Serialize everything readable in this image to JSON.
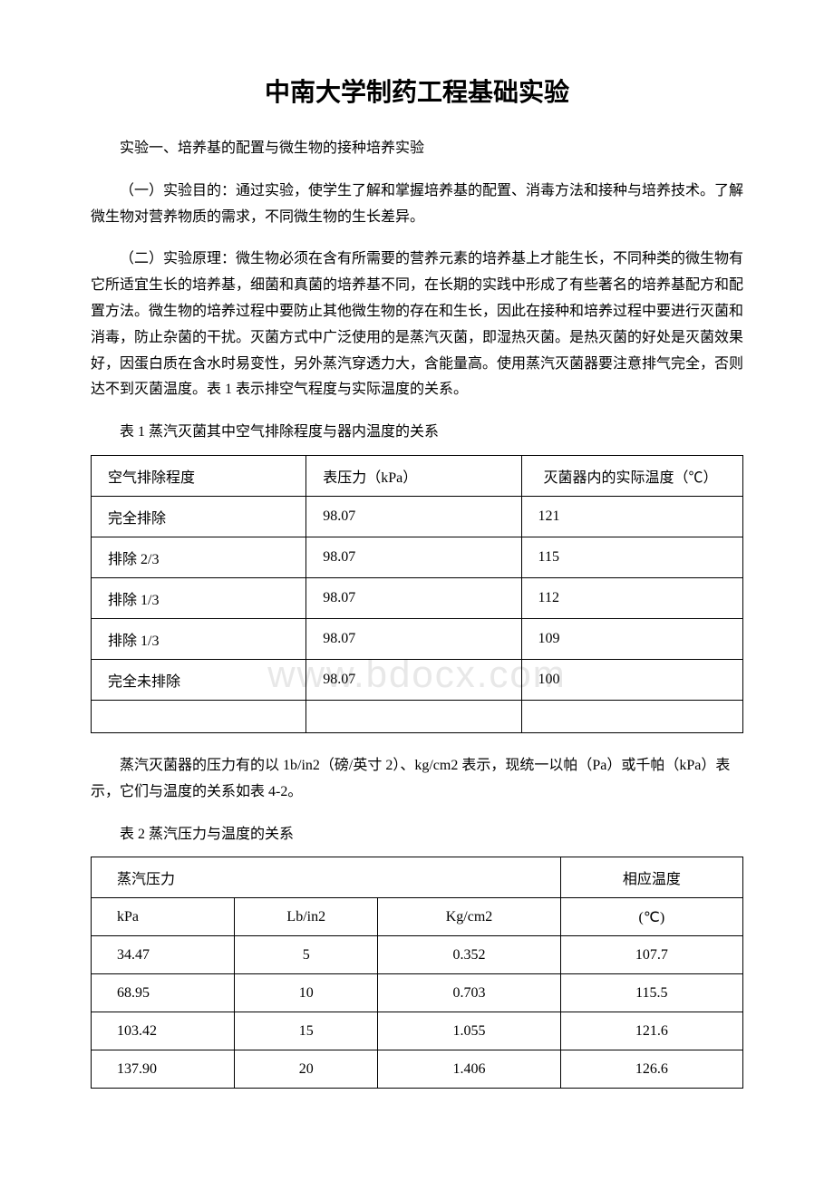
{
  "title": "中南大学制药工程基础实验",
  "section_heading": "实验一、培养基的配置与微生物的接种培养实验",
  "paragraph_1": "（一）实验目的：通过实验，使学生了解和掌握培养基的配置、消毒方法和接种与培养技术。了解微生物对营养物质的需求，不同微生物的生长差异。",
  "paragraph_2": "（二）实验原理：微生物必须在含有所需要的营养元素的培养基上才能生长，不同种类的微生物有它所适宜生长的培养基，细菌和真菌的培养基不同，在长期的实践中形成了有些著名的培养基配方和配置方法。微生物的培养过程中要防止其他微生物的存在和生长，因此在接种和培养过程中要进行灭菌和消毒，防止杂菌的干扰。灭菌方式中广泛使用的是蒸汽灭菌，即湿热灭菌。是热灭菌的好处是灭菌效果好，因蛋白质在含水时易变性，另外蒸汽穿透力大，含能量高。使用蒸汽灭菌器要注意排气完全，否则达不到灭菌温度。表 1 表示排空气程度与实际温度的关系。",
  "table1": {
    "caption": "表 1 蒸汽灭菌其中空气排除程度与器内温度的关系",
    "headers": [
      "空气排除程度",
      "表压力（kPa）",
      "灭菌器内的实际温度（℃）"
    ],
    "rows": [
      [
        "完全排除",
        "98.07",
        "121"
      ],
      [
        "排除 2/3",
        "98.07",
        "115"
      ],
      [
        "排除 1/3",
        "98.07",
        "112"
      ],
      [
        "排除 1/3",
        "98.07",
        "109"
      ],
      [
        "完全未排除",
        "98.07",
        "100"
      ]
    ]
  },
  "paragraph_3": "蒸汽灭菌器的压力有的以 1b/in2（磅/英寸 2）、kg/cm2 表示，现统一以帕（Pa）或千帕（kPa）表示，它们与温度的关系如表 4-2。",
  "table2": {
    "caption": "表 2 蒸汽压力与温度的关系",
    "header_left": "蒸汽压力",
    "header_right": "相应温度",
    "subheaders": [
      "kPa",
      "Lb/in2",
      "Kg/cm2",
      "(℃)"
    ],
    "rows": [
      [
        "34.47",
        "5",
        "0.352",
        "107.7"
      ],
      [
        "68.95",
        "10",
        "0.703",
        "115.5"
      ],
      [
        "103.42",
        "15",
        "1.055",
        "121.6"
      ],
      [
        "137.90",
        "20",
        "1.406",
        "126.6"
      ]
    ]
  },
  "watermark": "www.bdocx.com",
  "colors": {
    "text": "#000000",
    "background": "#ffffff",
    "border": "#000000",
    "watermark": "#e8e8e8"
  }
}
